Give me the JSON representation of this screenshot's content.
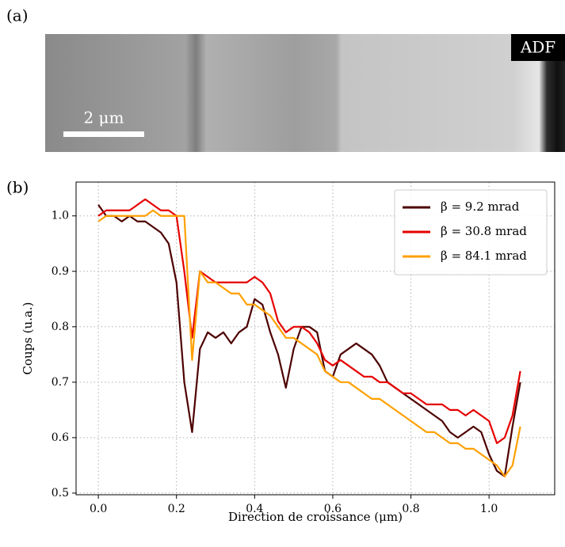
{
  "panel_a": {
    "label": "(a)",
    "scale_bar": "2 μm",
    "badge": "ADF"
  },
  "chart_data": {
    "type": "line",
    "panel_label": "(b)",
    "xlabel": "Direction de croissance (μm)",
    "ylabel": "Coups (u.a.)",
    "x": [
      0,
      0.02,
      0.04,
      0.06,
      0.08,
      0.1,
      0.12,
      0.14,
      0.16,
      0.18,
      0.2,
      0.22,
      0.24,
      0.26,
      0.28,
      0.3,
      0.32,
      0.34,
      0.36,
      0.38,
      0.4,
      0.42,
      0.44,
      0.46,
      0.48,
      0.5,
      0.52,
      0.54,
      0.56,
      0.58,
      0.6,
      0.62,
      0.64,
      0.66,
      0.68,
      0.7,
      0.72,
      0.74,
      0.76,
      0.78,
      0.8,
      0.82,
      0.84,
      0.86,
      0.88,
      0.9,
      0.92,
      0.94,
      0.96,
      0.98,
      1.0,
      1.02,
      1.04,
      1.06,
      1.08
    ],
    "series": [
      {
        "name": "β = 9.2 mrad",
        "color": "#4d0000",
        "values": [
          1.02,
          1.0,
          1.0,
          0.99,
          1.0,
          0.99,
          0.99,
          0.98,
          0.97,
          0.95,
          0.88,
          0.7,
          0.61,
          0.76,
          0.79,
          0.78,
          0.79,
          0.77,
          0.79,
          0.8,
          0.85,
          0.84,
          0.79,
          0.75,
          0.69,
          0.76,
          0.8,
          0.8,
          0.79,
          0.72,
          0.71,
          0.75,
          0.76,
          0.77,
          0.76,
          0.75,
          0.73,
          0.7,
          0.69,
          0.68,
          0.67,
          0.66,
          0.65,
          0.64,
          0.63,
          0.61,
          0.6,
          0.61,
          0.62,
          0.61,
          0.57,
          0.54,
          0.53,
          0.62,
          0.7
        ]
      },
      {
        "name": "β = 30.8 mrad",
        "color": "#e60000",
        "values": [
          1.0,
          1.01,
          1.01,
          1.01,
          1.01,
          1.02,
          1.03,
          1.02,
          1.01,
          1.01,
          1.0,
          0.9,
          0.78,
          0.9,
          0.89,
          0.88,
          0.88,
          0.88,
          0.88,
          0.88,
          0.89,
          0.88,
          0.86,
          0.81,
          0.79,
          0.8,
          0.8,
          0.79,
          0.77,
          0.74,
          0.73,
          0.74,
          0.73,
          0.72,
          0.71,
          0.71,
          0.7,
          0.7,
          0.69,
          0.68,
          0.68,
          0.67,
          0.66,
          0.66,
          0.66,
          0.65,
          0.65,
          0.64,
          0.65,
          0.64,
          0.63,
          0.59,
          0.6,
          0.64,
          0.72
        ]
      },
      {
        "name": "β = 84.1 mrad",
        "color": "#ffa000",
        "values": [
          0.99,
          1.0,
          1.0,
          1.0,
          1.0,
          1.0,
          1.0,
          1.01,
          1.0,
          1.0,
          1.0,
          1.0,
          0.74,
          0.9,
          0.88,
          0.88,
          0.87,
          0.86,
          0.86,
          0.84,
          0.84,
          0.83,
          0.82,
          0.8,
          0.78,
          0.78,
          0.77,
          0.76,
          0.75,
          0.72,
          0.71,
          0.7,
          0.7,
          0.69,
          0.68,
          0.67,
          0.67,
          0.66,
          0.65,
          0.64,
          0.63,
          0.62,
          0.61,
          0.61,
          0.6,
          0.59,
          0.59,
          0.58,
          0.58,
          0.57,
          0.56,
          0.55,
          0.53,
          0.55,
          0.62
        ]
      }
    ],
    "xlim": [
      -0.057,
      1.168
    ],
    "xticks": [
      {
        "value": 0,
        "label": "0.0"
      },
      0.2,
      0.4,
      0.6,
      0.8,
      {
        "value": 1,
        "label": "1.0"
      }
    ],
    "ylim": [
      0.497,
      1.061
    ],
    "yticks": [
      0.5,
      0.6,
      0.7,
      0.8,
      0.9,
      {
        "value": 1,
        "label": "1.0"
      }
    ],
    "grid": true,
    "legend": "upper right"
  }
}
